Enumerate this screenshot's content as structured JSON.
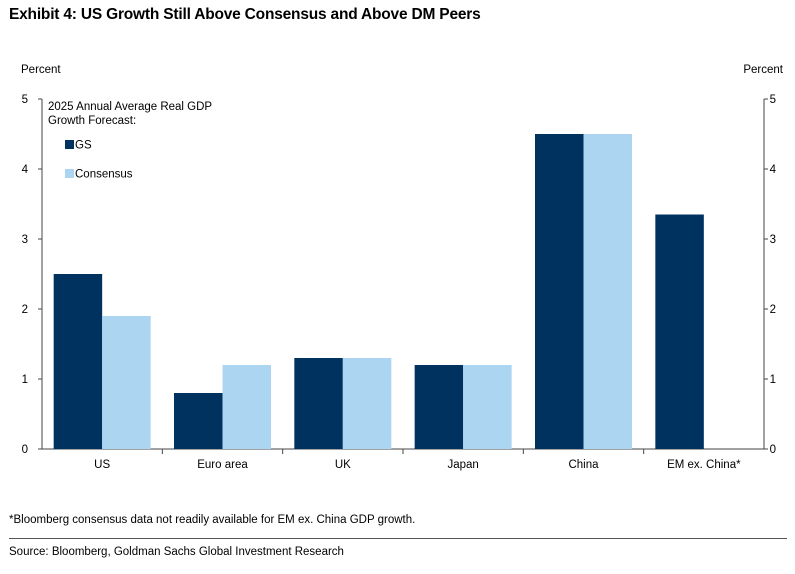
{
  "title": "Exhibit 4: US Growth Still Above Consensus and Above DM Peers",
  "footnote": "*Bloomberg consensus data not readily available for EM ex. China GDP growth.",
  "source": "Source: Bloomberg, Goldman Sachs Global Investment Research",
  "chart_data": {
    "type": "bar",
    "categories": [
      "US",
      "Euro area",
      "UK",
      "Japan",
      "China",
      "EM ex. China*"
    ],
    "series": [
      {
        "name": "GS",
        "color": "#00325f",
        "values": [
          2.5,
          0.8,
          1.3,
          1.2,
          4.5,
          3.35
        ]
      },
      {
        "name": "Consensus",
        "color": "#acd5f1",
        "values": [
          1.9,
          1.2,
          1.3,
          1.2,
          4.5,
          null
        ]
      }
    ],
    "ylabel_left": "Percent",
    "ylabel_right": "Percent",
    "ylim": [
      0,
      5
    ],
    "yticks": [
      "0",
      "1",
      "2",
      "3",
      "4",
      "5"
    ],
    "legend_title": "2025 Annual Average Real GDP Growth Forecast:",
    "legend_position": "top-left",
    "grid": false
  }
}
